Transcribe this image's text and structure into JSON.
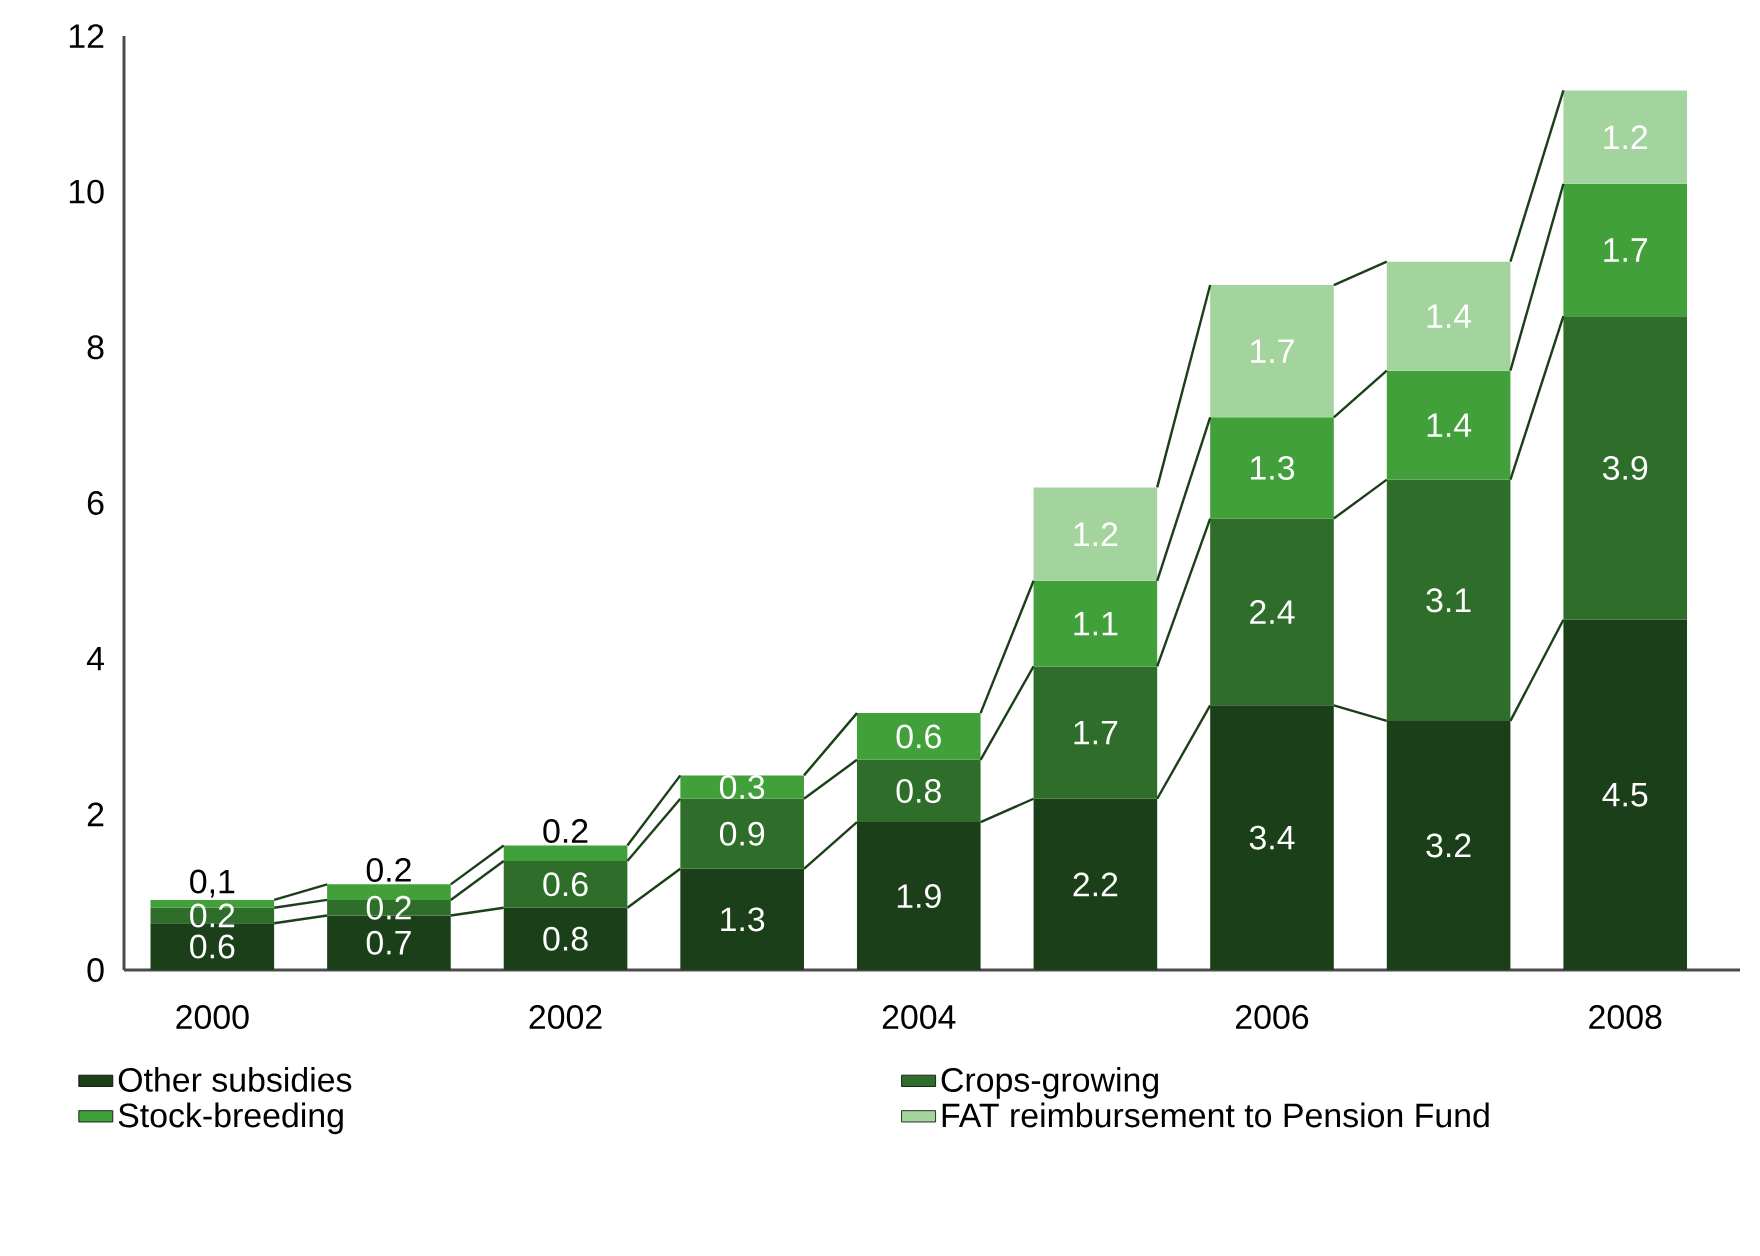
{
  "chart_data": {
    "type": "bar",
    "stacked": true,
    "categories": [
      "2000",
      null,
      "2002",
      null,
      "2004",
      null,
      "2006",
      null,
      "2008"
    ],
    "series": [
      {
        "name": "Other subsidies",
        "color": "#1b3f18",
        "values": [
          0.6,
          0.7,
          0.8,
          1.3,
          1.9,
          2.2,
          3.4,
          3.2,
          4.5
        ],
        "value_labels": [
          "0.6",
          "0.7",
          "0.8",
          "1.3",
          "1.9",
          "2.2",
          "3.4",
          "3.2",
          "4.5"
        ]
      },
      {
        "name": "Crops-growing",
        "color": "#2e6e2a",
        "values": [
          0.2,
          0.2,
          0.6,
          0.9,
          0.8,
          1.7,
          2.4,
          3.1,
          3.9
        ],
        "value_labels": [
          "0.2",
          "0.2",
          "0.6",
          "0.9",
          "0.8",
          "1.7",
          "2.4",
          "3.1",
          "3.9"
        ]
      },
      {
        "name": "Stock-breeding",
        "color": "#41a03a",
        "values": [
          0.1,
          0.2,
          0.2,
          0.3,
          0.6,
          1.1,
          1.3,
          1.4,
          1.7
        ],
        "value_labels": [
          "0,1",
          "0.2",
          "0.2",
          "0.3",
          "0.6",
          "1.1",
          "1.3",
          "1.4",
          "1.7"
        ]
      },
      {
        "name": "FAT reimbursement to Pension Fund",
        "color": "#a3d49d",
        "values": [
          null,
          null,
          null,
          null,
          null,
          1.2,
          1.7,
          1.4,
          1.2
        ],
        "value_labels": [
          null,
          null,
          null,
          null,
          null,
          "1.2",
          "1.7",
          "1.4",
          "1.2"
        ]
      }
    ],
    "ylim": [
      0,
      12
    ],
    "yticks": [
      0,
      2,
      4,
      6,
      8,
      10,
      12
    ],
    "grid": false,
    "legend": "bottom"
  }
}
